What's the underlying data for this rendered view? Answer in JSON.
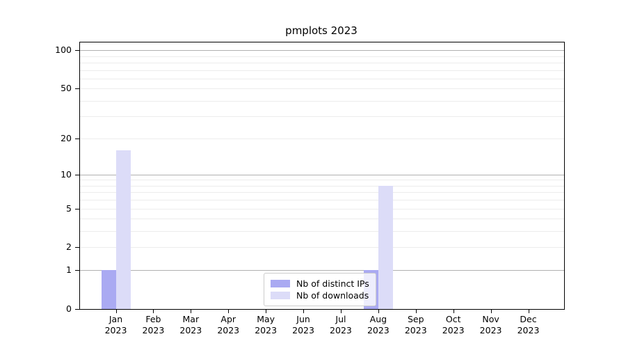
{
  "chart_data": {
    "type": "bar",
    "title": "pmplots 2023",
    "scale": "log1p",
    "ylim": [
      0,
      115
    ],
    "yticks": [
      0,
      1,
      2,
      5,
      10,
      20,
      50,
      100
    ],
    "grid": true,
    "grid_major": [
      1,
      10,
      100
    ],
    "grid_minor": [
      2,
      3,
      4,
      5,
      6,
      7,
      8,
      9,
      20,
      30,
      40,
      50,
      60,
      70,
      80,
      90
    ],
    "legend_position": "lower center",
    "categories": [
      {
        "month": "Jan",
        "year": "2023"
      },
      {
        "month": "Feb",
        "year": "2023"
      },
      {
        "month": "Mar",
        "year": "2023"
      },
      {
        "month": "Apr",
        "year": "2023"
      },
      {
        "month": "May",
        "year": "2023"
      },
      {
        "month": "Jun",
        "year": "2023"
      },
      {
        "month": "Jul",
        "year": "2023"
      },
      {
        "month": "Aug",
        "year": "2023"
      },
      {
        "month": "Sep",
        "year": "2023"
      },
      {
        "month": "Oct",
        "year": "2023"
      },
      {
        "month": "Nov",
        "year": "2023"
      },
      {
        "month": "Dec",
        "year": "2023"
      }
    ],
    "series": [
      {
        "name": "Nb of distinct IPs",
        "color": "#aaaaf2",
        "values": [
          1,
          0,
          0,
          0,
          0,
          0,
          0,
          1,
          0,
          0,
          0,
          0
        ]
      },
      {
        "name": "Nb of downloads",
        "color": "#dcdcf8",
        "values": [
          16,
          0,
          0,
          0,
          0,
          0,
          0,
          8,
          0,
          0,
          0,
          0
        ]
      }
    ],
    "colors": {
      "grid_major": "#b0b0b0",
      "grid_minor": "#ececec",
      "axis": "#000000",
      "legend_border": "#cccccc"
    }
  }
}
